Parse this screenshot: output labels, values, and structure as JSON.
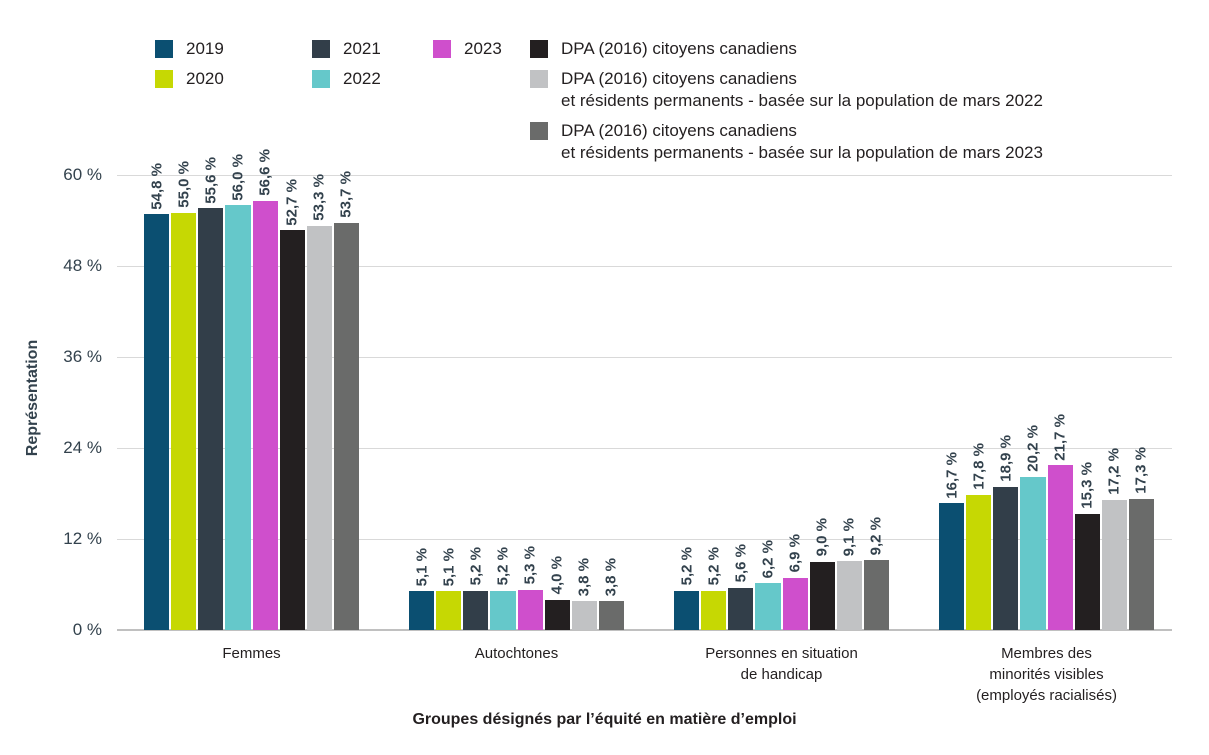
{
  "legend": {
    "years": [
      {
        "label": "2019",
        "color": "#0b4f71"
      },
      {
        "label": "2020",
        "color": "#c6d803"
      },
      {
        "label": "2021",
        "color": "#323e49"
      },
      {
        "label": "2022",
        "color": "#65c8ca"
      },
      {
        "label": "2023",
        "color": "#cf4fcc"
      }
    ],
    "dpa": [
      {
        "line1": "DPA (2016) citoyens canadiens",
        "line2": "",
        "color": "#231f20"
      },
      {
        "line1": "DPA (2016) citoyens canadiens",
        "line2": "et résidents permanents - basée sur la population de mars 2022",
        "color": "#c1c2c4"
      },
      {
        "line1": "DPA (2016) citoyens canadiens",
        "line2": "et résidents permanents - basée sur la population de mars 2023",
        "color": "#6a6b6a"
      }
    ]
  },
  "chart_data": {
    "type": "bar",
    "title": "",
    "xlabel": "Groupes désignés par l’équité en matière d’emploi",
    "ylabel": "Représentation",
    "ylim": [
      0,
      60
    ],
    "yticks": [
      0,
      12,
      24,
      36,
      48,
      60
    ],
    "ytick_labels": [
      "0 %",
      "12 %",
      "24 %",
      "36 %",
      "48 %",
      "60 %"
    ],
    "grid": "horizontal",
    "legend_position": "top",
    "categories": [
      "Femmes",
      "Autochtones",
      "Personnes en situation de handicap",
      "Membres des minorités visibles (employés racialisés)"
    ],
    "category_label_lines": [
      [
        "Femmes"
      ],
      [
        "Autochtones"
      ],
      [
        "Personnes en situation",
        "de handicap"
      ],
      [
        "Membres des",
        "minorités visibles",
        "(employés racialisés)"
      ]
    ],
    "series": [
      {
        "name": "2019",
        "color": "#0b4f71",
        "values": [
          54.8,
          5.1,
          5.2,
          16.7
        ],
        "labels": [
          "54,8 %",
          "5,1 %",
          "5,2 %",
          "16,7 %"
        ]
      },
      {
        "name": "2020",
        "color": "#c6d803",
        "values": [
          55.0,
          5.1,
          5.2,
          17.8
        ],
        "labels": [
          "55,0 %",
          "5,1 %",
          "5,2 %",
          "17,8 %"
        ]
      },
      {
        "name": "2021",
        "color": "#323e49",
        "values": [
          55.6,
          5.2,
          5.6,
          18.9
        ],
        "labels": [
          "55,6 %",
          "5,2 %",
          "5,6 %",
          "18,9 %"
        ]
      },
      {
        "name": "2022",
        "color": "#65c8ca",
        "values": [
          56.0,
          5.2,
          6.2,
          20.2
        ],
        "labels": [
          "56,0 %",
          "5,2 %",
          "6,2 %",
          "20,2 %"
        ]
      },
      {
        "name": "2023",
        "color": "#cf4fcc",
        "values": [
          56.6,
          5.3,
          6.9,
          21.7
        ],
        "labels": [
          "56,6 %",
          "5,3 %",
          "6,9 %",
          "21,7 %"
        ]
      },
      {
        "name": "DPA (2016) citoyens canadiens",
        "color": "#231f20",
        "values": [
          52.7,
          4.0,
          9.0,
          15.3
        ],
        "labels": [
          "52,7 %",
          "4,0 %",
          "9,0 %",
          "15,3 %"
        ]
      },
      {
        "name": "DPA (2016) citoyens canadiens et résidents permanents - basée sur la population de mars 2022",
        "color": "#c1c2c4",
        "values": [
          53.3,
          3.8,
          9.1,
          17.2
        ],
        "labels": [
          "53,3 %",
          "3,8 %",
          "9,1 %",
          "17,2 %"
        ]
      },
      {
        "name": "DPA (2016) citoyens canadiens et résidents permanents - basée sur la population de mars 2023",
        "color": "#6a6b6a",
        "values": [
          53.7,
          3.8,
          9.2,
          17.3
        ],
        "labels": [
          "53,7 %",
          "3,8 %",
          "9,2 %",
          "17,3 %"
        ]
      }
    ]
  },
  "colors": {
    "background": "#ffffff",
    "gridline": "#d9d9d9",
    "axis_baseline": "#c0c0c0",
    "tick_label_text": "#33424d",
    "value_label_text": "#33424d",
    "category_label_text": "#231f20",
    "legend_text": "#231f20",
    "axis_title_text": "#231f20"
  }
}
